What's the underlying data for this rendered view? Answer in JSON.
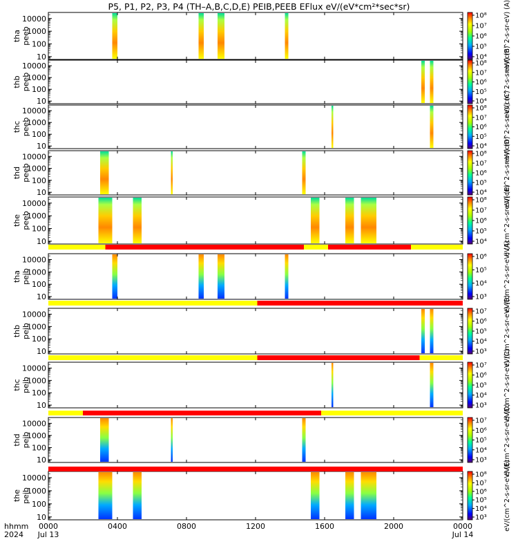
{
  "title": "P5, P1, P2, P3, P4 (TH–A,B,C,D,E) PEIB,PEEB EFlux eV/(eV*cm²*sec*sr)",
  "x_axis": {
    "row_label_1": "hhmm",
    "row_label_2": "2024",
    "ticks": [
      {
        "hours": 0,
        "label": "0000",
        "sub": "Jul 13"
      },
      {
        "hours": 4,
        "label": "0400",
        "sub": ""
      },
      {
        "hours": 8,
        "label": "0800",
        "sub": ""
      },
      {
        "hours": 12,
        "label": "1200",
        "sub": ""
      },
      {
        "hours": 16,
        "label": "1600",
        "sub": ""
      },
      {
        "hours": 20,
        "label": "2000",
        "sub": ""
      },
      {
        "hours": 24,
        "label": "0000",
        "sub": "Jul 14"
      }
    ]
  },
  "chart_data": {
    "type": "heatmap",
    "title": "P5, P1, P2, P3, P4 (TH–A,B,C,D,E) PEIB,PEEB EFlux eV/(eV*cm²*sec*sr)",
    "x_range_hours": [
      0,
      24
    ],
    "y_scale": "log",
    "y_range_eV": [
      6,
      30000
    ],
    "y_ticks": [
      "10",
      "100",
      "1000",
      "10000"
    ],
    "panels": [
      {
        "id": "tha-peeb",
        "label1": "tha",
        "label2": "peeb",
        "colorbar": {
          "ticks": [
            "10⁴",
            "10⁵",
            "10⁶",
            "10⁷",
            "10⁸"
          ],
          "unit": "eV/(cm^2-s-sr-eV) (A)"
        },
        "intervals": [
          [
            3.7,
            4.0
          ],
          [
            8.7,
            9.0
          ],
          [
            9.8,
            10.2
          ],
          [
            13.7,
            13.9
          ]
        ]
      },
      {
        "id": "thb-peeb",
        "label1": "thb",
        "label2": "peeb",
        "colorbar": {
          "ticks": [
            "10⁴",
            "10⁵",
            "10⁶",
            "10⁷",
            "10⁸"
          ],
          "unit": "eV/(cm^2-s-sr-eV) (B)"
        },
        "intervals": [
          [
            21.6,
            21.8
          ],
          [
            22.1,
            22.3
          ]
        ]
      },
      {
        "id": "thc-peeb",
        "label1": "thc",
        "label2": "peeb",
        "colorbar": {
          "ticks": [
            "10⁴",
            "10⁵",
            "10⁶",
            "10⁷",
            "10⁸"
          ],
          "unit": "eV/(cm^2-s-sr-eV) (C)"
        },
        "intervals": [
          [
            16.4,
            16.5
          ],
          [
            22.1,
            22.3
          ]
        ]
      },
      {
        "id": "thd-peeb",
        "label1": "thd",
        "label2": "peeb",
        "colorbar": {
          "ticks": [
            "10⁴",
            "10⁵",
            "10⁶",
            "10⁷",
            "10⁸"
          ],
          "unit": "eV/(cm^2-s-sr-eV) (D)"
        },
        "intervals": [
          [
            3.0,
            3.5
          ],
          [
            7.1,
            7.2
          ],
          [
            14.7,
            14.9
          ]
        ]
      },
      {
        "id": "the-peeb",
        "label1": "the",
        "label2": "peeb",
        "colorbar": {
          "ticks": [
            "10⁴",
            "10⁵",
            "10⁶",
            "10⁷",
            "10⁸"
          ],
          "unit": "eV/(cm^2-s-sr-eV) (E)"
        },
        "intervals": [
          [
            2.9,
            3.7
          ],
          [
            4.9,
            5.4
          ],
          [
            15.2,
            15.7
          ],
          [
            17.2,
            17.7
          ],
          [
            18.1,
            19.0
          ]
        ]
      },
      {
        "id": "tha-peib",
        "label1": "tha",
        "label2": "peib",
        "colorbar": {
          "ticks": [
            "10³",
            "10⁴",
            "10⁵",
            "10⁶"
          ],
          "unit": "eV/(cm^2-s-sr-eV) (A)"
        },
        "intervals": [
          [
            3.7,
            4.0
          ],
          [
            8.7,
            9.0
          ],
          [
            9.8,
            10.2
          ],
          [
            13.7,
            13.9
          ]
        ]
      },
      {
        "id": "thb-peib",
        "label1": "thb",
        "label2": "peib",
        "colorbar": {
          "ticks": [
            "10³",
            "10⁴",
            "10⁵",
            "10⁶",
            "10⁷"
          ],
          "unit": "eV/(cm^2-s-sr-eV) (B)"
        },
        "intervals": [
          [
            21.6,
            21.8
          ],
          [
            22.1,
            22.3
          ]
        ]
      },
      {
        "id": "thc-peib",
        "label1": "thc",
        "label2": "peib",
        "colorbar": {
          "ticks": [
            "10³",
            "10⁴",
            "10⁵",
            "10⁶",
            "10⁷"
          ],
          "unit": "eV/(cm^2-s-sr-eV) (C)"
        },
        "intervals": [
          [
            16.4,
            16.5
          ],
          [
            22.1,
            22.3
          ]
        ]
      },
      {
        "id": "thd-peib",
        "label1": "thd",
        "label2": "peib",
        "colorbar": {
          "ticks": [
            "10³",
            "10⁴",
            "10⁵",
            "10⁶",
            "10⁷"
          ],
          "unit": "eV/(cm^2-s-sr-eV) (D)"
        },
        "intervals": [
          [
            3.0,
            3.5
          ],
          [
            7.1,
            7.2
          ],
          [
            14.7,
            14.9
          ]
        ]
      },
      {
        "id": "the-peib",
        "label1": "the",
        "label2": "peib",
        "colorbar": {
          "ticks": [
            "10³",
            "10⁴",
            "10⁵",
            "10⁶",
            "10⁷",
            "10⁸"
          ],
          "unit": "eV/(cm^2-s-sr-eV) (E)"
        },
        "intervals": [
          [
            2.9,
            3.7
          ],
          [
            4.9,
            5.4
          ],
          [
            15.2,
            15.7
          ],
          [
            17.2,
            17.7
          ],
          [
            18.1,
            19.0
          ]
        ]
      }
    ],
    "mode_bars": [
      {
        "after_panel": "the-peeb",
        "segments": [
          {
            "from": 0.0,
            "to": 3.3,
            "color": "#ffff00"
          },
          {
            "from": 3.3,
            "to": 14.8,
            "color": "#ff0000"
          },
          {
            "from": 14.8,
            "to": 16.2,
            "color": "#ffff00"
          },
          {
            "from": 16.2,
            "to": 21.0,
            "color": "#ff0000"
          },
          {
            "from": 21.0,
            "to": 24.0,
            "color": "#ffff00"
          }
        ]
      },
      {
        "after_panel": "tha-peib",
        "segments": [
          {
            "from": 0.0,
            "to": 12.1,
            "color": "#ffff00"
          },
          {
            "from": 12.1,
            "to": 24.0,
            "color": "#ff0000"
          }
        ]
      },
      {
        "after_panel": "thb-peib",
        "segments": [
          {
            "from": 0.0,
            "to": 12.1,
            "color": "#ffff00"
          },
          {
            "from": 12.1,
            "to": 21.5,
            "color": "#ff0000"
          },
          {
            "from": 21.5,
            "to": 24.0,
            "color": "#ffff00"
          }
        ]
      },
      {
        "after_panel": "thc-peib",
        "segments": [
          {
            "from": 0.0,
            "to": 2.0,
            "color": "#ffff00"
          },
          {
            "from": 2.0,
            "to": 15.8,
            "color": "#ff0000"
          },
          {
            "from": 15.8,
            "to": 24.0,
            "color": "#ffff00"
          }
        ]
      },
      {
        "after_panel": "thd-peib",
        "segments": [
          {
            "from": 0.0,
            "to": 24.0,
            "color": "#ff0000"
          }
        ]
      }
    ]
  }
}
